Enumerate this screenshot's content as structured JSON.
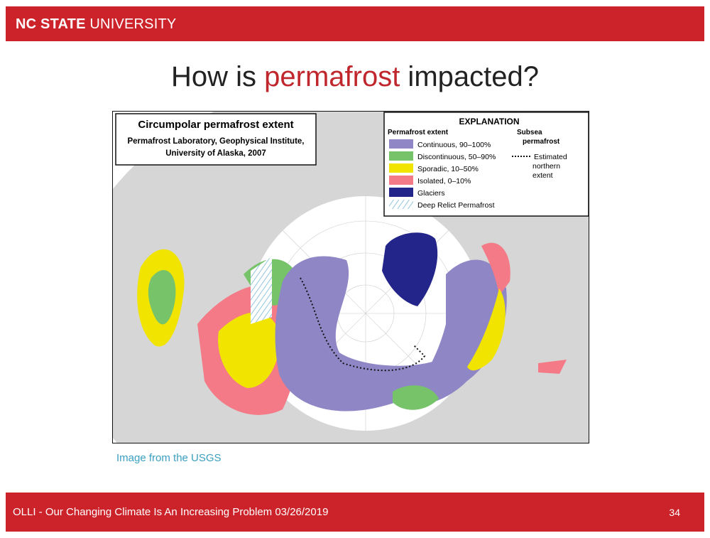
{
  "header": {
    "brand_bold": "NC STATE",
    "brand_regular": "UNIVERSITY"
  },
  "title": {
    "before": "How is ",
    "highlight": "permafrost",
    "after": " impacted?"
  },
  "map": {
    "title_box": {
      "title": "Circumpolar permafrost extent",
      "lines": [
        "Permafrost Laboratory, Geophysical Institute,",
        "University of Alaska, 2007"
      ]
    },
    "explanation": {
      "heading": "EXPLANATION",
      "extent_heading": "Permafrost extent",
      "items": [
        "Continuous, 90–100%",
        "Discontinuous, 50–90%",
        "Sporadic, 10–50%",
        "Isolated, 0–10%",
        "Glaciers",
        "Deep Relict Permafrost"
      ],
      "subsea_heading": [
        "Subsea",
        "permafrost"
      ],
      "subsea_lines": [
        "Estimated",
        "northern",
        "extent"
      ]
    }
  },
  "caption": "Image from the USGS",
  "footer": {
    "text": "OLLI - Our Changing Climate Is An Increasing Problem 03/26/2019",
    "page": "34"
  }
}
